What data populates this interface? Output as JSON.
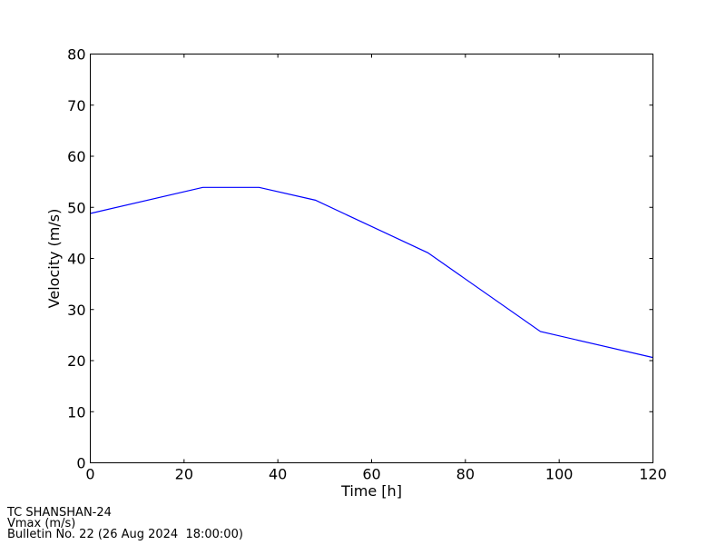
{
  "chart_data": {
    "type": "line",
    "xlabel": "Time [h]",
    "ylabel": "Velocity (m/s)",
    "xlim": [
      0,
      120
    ],
    "ylim": [
      0,
      80
    ],
    "xticks": [
      0,
      20,
      40,
      60,
      80,
      100,
      120
    ],
    "yticks": [
      0,
      10,
      20,
      30,
      40,
      50,
      60,
      70,
      80
    ],
    "grid": false,
    "series": [
      {
        "color": "#0000ff",
        "x": [
          0,
          24,
          36,
          48,
          72,
          96,
          120
        ],
        "y": [
          48.8,
          53.9,
          53.9,
          51.4,
          41.1,
          25.7,
          20.6
        ]
      }
    ]
  },
  "footer": {
    "line1": "TC SHANSHAN-24",
    "line2": "Vmax (m/s)",
    "line3": "Bulletin No. 22 (26 Aug 2024  18:00:00)"
  }
}
